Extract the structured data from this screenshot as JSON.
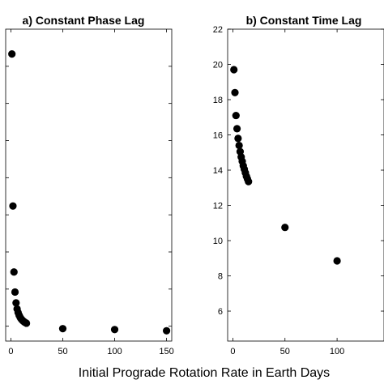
{
  "xlabel": "Initial Prograde Rotation Rate in Earth Days",
  "chart_data": [
    {
      "type": "scatter",
      "title": "a) Constant Phase Lag",
      "xlim": [
        -5,
        155
      ],
      "xticks": [
        0,
        50,
        100,
        150
      ],
      "x": [
        1,
        2,
        3,
        4,
        5,
        6,
        7,
        8,
        9,
        10,
        11,
        12,
        13,
        14,
        15,
        50,
        100,
        150
      ],
      "y": [
        0.918,
        0.416,
        0.198,
        0.132,
        0.096,
        0.076,
        0.064,
        0.055,
        0.048,
        0.043,
        0.039,
        0.036,
        0.033,
        0.031,
        0.029,
        0.011,
        0.008,
        0.004
      ],
      "ylim": [
        -0.03,
        1.0
      ],
      "yticks_visible": false,
      "grid": false
    },
    {
      "type": "scatter",
      "title": "b) Constant Time Lag",
      "xlim": [
        -5,
        145
      ],
      "xticks": [
        0,
        50,
        100
      ],
      "x": [
        1,
        2,
        3,
        4,
        5,
        6,
        7,
        8,
        9,
        10,
        11,
        12,
        13,
        14,
        15,
        50,
        100
      ],
      "y": [
        19.7,
        18.4,
        17.1,
        16.35,
        15.8,
        15.4,
        15.05,
        14.75,
        14.5,
        14.25,
        14.05,
        13.85,
        13.65,
        13.5,
        13.35,
        10.75,
        8.85
      ],
      "ylim": [
        4.3,
        22
      ],
      "yticks": [
        6,
        8,
        10,
        12,
        14,
        16,
        18,
        20,
        22
      ],
      "grid": false
    }
  ]
}
